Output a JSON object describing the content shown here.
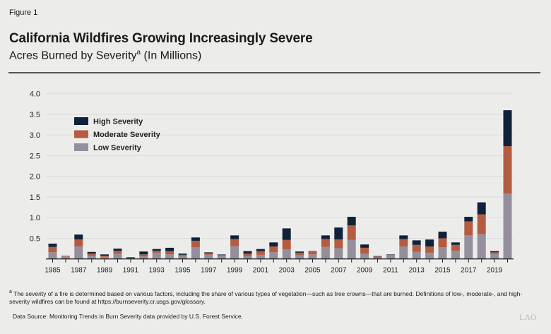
{
  "figure_label": "Figure 1",
  "title": "California Wildfires Growing Increasingly Severe",
  "subtitle": "Acres Burned by Severity",
  "subtitle_sup": "a",
  "subtitle_units": " (In Millions)",
  "footnote_marker": "a",
  "footnote": "The severity of a fire is determined based on various factors, including the share of various types of vegetation—such as tree crowns—that are burned. Definitions of low-, moderate-, and high-severity wildfires can be found at https://burnseverity.cr.usgs.gov/glossary.",
  "source": "Data Source: Monitoring Trends in Burn Severity data provided by U.S. Forest Service.",
  "logo": "LAO",
  "colors": {
    "high": "#10223a",
    "moderate": "#b35c42",
    "low": "#958f9c"
  },
  "chart_data": {
    "type": "bar",
    "stacked": true,
    "title": "California Wildfires Growing Increasingly Severe",
    "ylabel": "",
    "xlabel": "",
    "ylim": [
      0,
      4.0
    ],
    "yticks": [
      "0.5",
      "1.0",
      "1.5",
      "2.0",
      "2.5",
      "3.0",
      "3.5",
      "4.0"
    ],
    "xtick_labels": [
      "1985",
      "1987",
      "1989",
      "1991",
      "1993",
      "1995",
      "1997",
      "1999",
      "2001",
      "2003",
      "2005",
      "2007",
      "2009",
      "2011",
      "2013",
      "2015",
      "2017",
      "2019"
    ],
    "legend_position": "top-left",
    "grid": true,
    "categories": [
      1985,
      1986,
      1987,
      1988,
      1989,
      1990,
      1991,
      1992,
      1993,
      1994,
      1995,
      1996,
      1997,
      1998,
      1999,
      2000,
      2001,
      2002,
      2003,
      2004,
      2005,
      2006,
      2007,
      2008,
      2009,
      2010,
      2011,
      2012,
      2013,
      2014,
      2015,
      2016,
      2017,
      2018,
      2019,
      2020
    ],
    "series": [
      {
        "name": "Low Severity",
        "values": [
          0.16,
          0.06,
          0.3,
          0.08,
          0.05,
          0.13,
          0.02,
          0.06,
          0.15,
          0.11,
          0.07,
          0.28,
          0.1,
          0.08,
          0.31,
          0.07,
          0.1,
          0.16,
          0.23,
          0.09,
          0.11,
          0.29,
          0.26,
          0.46,
          0.13,
          0.03,
          0.09,
          0.3,
          0.17,
          0.15,
          0.28,
          0.2,
          0.57,
          0.6,
          0.12,
          1.58
        ]
      },
      {
        "name": "Moderate Severity",
        "values": [
          0.13,
          0.02,
          0.17,
          0.05,
          0.03,
          0.07,
          0.0,
          0.05,
          0.05,
          0.08,
          0.03,
          0.16,
          0.04,
          0.02,
          0.17,
          0.06,
          0.09,
          0.14,
          0.23,
          0.06,
          0.07,
          0.19,
          0.21,
          0.35,
          0.14,
          0.03,
          0.01,
          0.18,
          0.17,
          0.15,
          0.22,
          0.14,
          0.34,
          0.48,
          0.04,
          1.15
        ]
      },
      {
        "name": "High Severity",
        "values": [
          0.08,
          0.0,
          0.12,
          0.04,
          0.03,
          0.05,
          0.02,
          0.07,
          0.04,
          0.08,
          0.03,
          0.08,
          0.02,
          0.01,
          0.09,
          0.06,
          0.05,
          0.1,
          0.28,
          0.03,
          0.01,
          0.09,
          0.29,
          0.21,
          0.08,
          0.01,
          0.01,
          0.09,
          0.11,
          0.17,
          0.16,
          0.06,
          0.11,
          0.29,
          0.03,
          0.87
        ]
      }
    ]
  }
}
